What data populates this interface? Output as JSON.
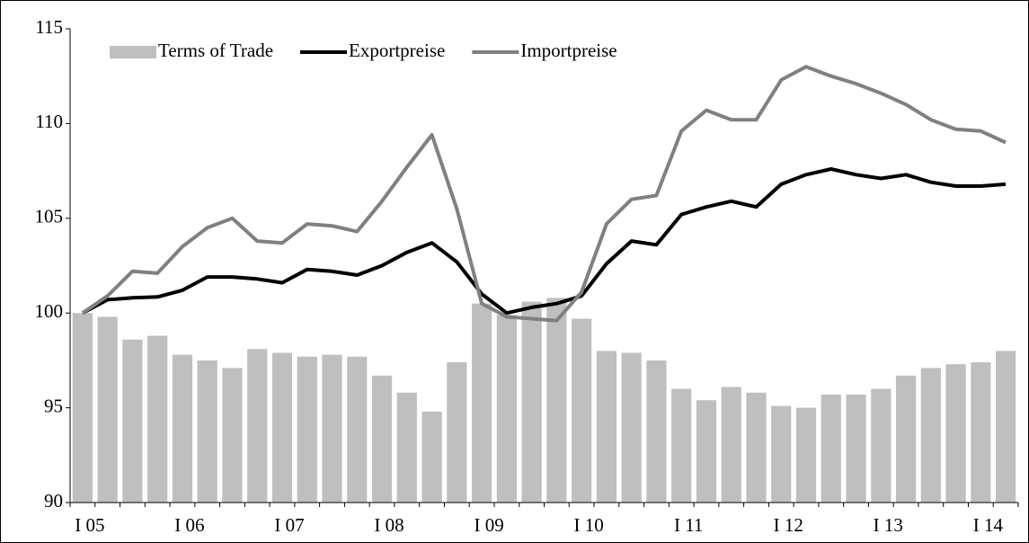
{
  "chart_data": {
    "type": "bar-line",
    "categories": [
      "I 05",
      null,
      null,
      null,
      "I 06",
      null,
      null,
      null,
      "I 07",
      null,
      null,
      null,
      "I 08",
      null,
      null,
      null,
      "I 09",
      null,
      null,
      null,
      "I 10",
      null,
      null,
      null,
      "I 11",
      null,
      null,
      null,
      "I 12",
      null,
      null,
      null,
      "I 13",
      null,
      null,
      null,
      "I 14",
      null
    ],
    "series": [
      {
        "name": "Terms of Trade",
        "kind": "bar",
        "color": "#bfbfbf",
        "values": [
          100,
          99.8,
          98.6,
          98.8,
          97.8,
          97.5,
          97.1,
          98.1,
          97.9,
          97.7,
          97.8,
          97.7,
          96.7,
          95.8,
          94.8,
          97.4,
          100.5,
          99.9,
          100.6,
          100.8,
          99.7,
          98.0,
          97.9,
          97.5,
          96.0,
          95.4,
          96.1,
          95.8,
          95.1,
          95.0,
          95.7,
          95.7,
          96.0,
          96.7,
          97.1,
          97.3,
          97.4,
          98.0
        ]
      },
      {
        "name": "Exportpreise",
        "kind": "line",
        "color": "#000000",
        "values": [
          100,
          100.7,
          100.8,
          100.85,
          101.2,
          101.9,
          101.9,
          101.8,
          101.6,
          102.3,
          102.2,
          102.0,
          102.5,
          103.2,
          103.7,
          102.7,
          101.0,
          100.0,
          100.3,
          100.5,
          100.9,
          102.6,
          103.8,
          103.6,
          105.2,
          105.6,
          105.9,
          105.6,
          106.8,
          107.3,
          107.6,
          107.3,
          107.1,
          107.3,
          106.9,
          106.7,
          106.7,
          106.8
        ]
      },
      {
        "name": "Importpreise",
        "kind": "line",
        "color": "#808080",
        "values": [
          100,
          100.9,
          102.2,
          102.1,
          103.5,
          104.5,
          105.0,
          103.8,
          103.7,
          104.7,
          104.6,
          104.3,
          105.9,
          107.7,
          109.4,
          105.5,
          100.5,
          99.8,
          99.7,
          99.6,
          101.1,
          104.7,
          106.0,
          106.2,
          109.6,
          110.7,
          110.2,
          110.2,
          112.3,
          113.0,
          112.5,
          112.1,
          111.6,
          111.0,
          110.2,
          109.7,
          109.6,
          109.0
        ]
      }
    ],
    "ylim": [
      90,
      115
    ],
    "yticks": [
      90,
      95,
      100,
      105,
      110,
      115
    ],
    "grid": false,
    "legend": "top"
  }
}
